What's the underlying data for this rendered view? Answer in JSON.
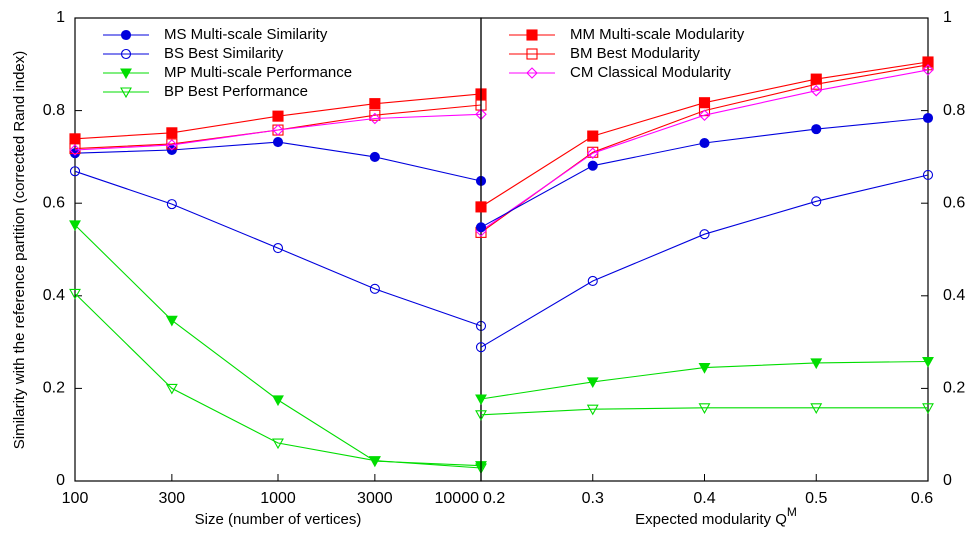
{
  "chart_data": [
    {
      "type": "line",
      "xscale": "log",
      "xlabel": "Size (number of vertices)",
      "ylabel": "Similarity with the reference partition (corrected Rand index)",
      "xlim": [
        100,
        10000
      ],
      "ylim": [
        0,
        1
      ],
      "x_ticks": [
        "100",
        "300",
        "1000",
        "3000",
        "10000"
      ],
      "y_ticks": [
        "0",
        "0.2",
        "0.4",
        "0.6",
        "0.8",
        "1"
      ],
      "legend_position": "top-left",
      "grid": false,
      "x": [
        100,
        300,
        1000,
        3000,
        10000
      ],
      "series": [
        {
          "key": "MS",
          "name": "MS Multi-scale Similarity",
          "color": "#0000dd",
          "marker": "filled-circle",
          "values": [
            0.708,
            0.715,
            0.732,
            0.7,
            0.648
          ]
        },
        {
          "key": "BS",
          "name": "BS Best Similarity",
          "color": "#0000dd",
          "marker": "open-circle",
          "values": [
            0.669,
            0.598,
            0.503,
            0.415,
            0.335
          ]
        },
        {
          "key": "MP",
          "name": "MP Multi-scale Performance",
          "color": "#00dd00",
          "marker": "filled-triangle-down",
          "values": [
            0.553,
            0.347,
            0.175,
            0.043,
            0.033
          ]
        },
        {
          "key": "BP",
          "name": "BP Best Performance",
          "color": "#00dd00",
          "marker": "open-triangle-down",
          "values": [
            0.405,
            0.2,
            0.082,
            0.044,
            0.028
          ]
        },
        {
          "key": "MM",
          "name": "",
          "color": "#ff0000",
          "marker": "filled-square",
          "values": [
            0.739,
            0.752,
            0.788,
            0.815,
            0.836
          ]
        },
        {
          "key": "BM",
          "name": "",
          "color": "#ff0000",
          "marker": "open-square",
          "values": [
            0.718,
            0.728,
            0.758,
            0.79,
            0.812
          ]
        },
        {
          "key": "CM",
          "name": "",
          "color": "#ff00ff",
          "marker": "open-diamond",
          "values": [
            0.715,
            0.726,
            0.758,
            0.783,
            0.792
          ]
        }
      ]
    },
    {
      "type": "line",
      "xscale": "linear",
      "xlabel": "Expected modularity Q",
      "xlabel_superscript": "M",
      "xlim": [
        0.2,
        0.6
      ],
      "ylim": [
        0,
        1
      ],
      "x_ticks": [
        "0.2",
        "0.3",
        "0.4",
        "0.5",
        "0.6"
      ],
      "y_ticks": [
        "0",
        "0.2",
        "0.4",
        "0.6",
        "0.8",
        "1"
      ],
      "legend_position": "top-left",
      "grid": false,
      "x": [
        0.2,
        0.3,
        0.4,
        0.5,
        0.6
      ],
      "series": [
        {
          "key": "MM",
          "name": "MM Multi-scale Modularity",
          "color": "#ff0000",
          "marker": "filled-square",
          "values": [
            0.592,
            0.745,
            0.817,
            0.868,
            0.905
          ]
        },
        {
          "key": "BM",
          "name": "BM Best Modularity",
          "color": "#ff0000",
          "marker": "open-square",
          "values": [
            0.537,
            0.71,
            0.8,
            0.857,
            0.899
          ]
        },
        {
          "key": "CM",
          "name": "CM Classical Modularity",
          "color": "#ff00ff",
          "marker": "open-diamond",
          "values": [
            0.54,
            0.708,
            0.79,
            0.843,
            0.888
          ]
        },
        {
          "key": "MS",
          "name": "",
          "color": "#0000dd",
          "marker": "filled-circle",
          "values": [
            0.548,
            0.681,
            0.73,
            0.76,
            0.784
          ]
        },
        {
          "key": "BS",
          "name": "",
          "color": "#0000dd",
          "marker": "open-circle",
          "values": [
            0.289,
            0.432,
            0.533,
            0.604,
            0.661
          ]
        },
        {
          "key": "MP",
          "name": "",
          "color": "#00dd00",
          "marker": "filled-triangle-down",
          "values": [
            0.177,
            0.214,
            0.245,
            0.255,
            0.258
          ]
        },
        {
          "key": "BP",
          "name": "",
          "color": "#00dd00",
          "marker": "open-triangle-down",
          "values": [
            0.143,
            0.155,
            0.158,
            0.158,
            0.158
          ]
        }
      ]
    }
  ]
}
